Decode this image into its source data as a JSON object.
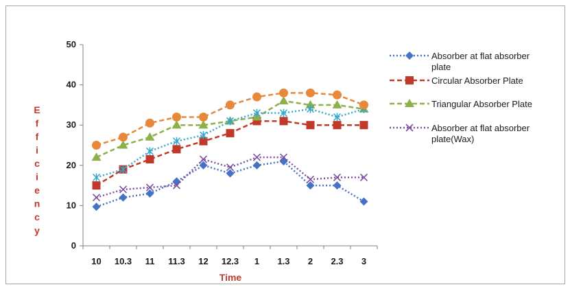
{
  "chart_data": {
    "type": "line",
    "title": "",
    "xlabel": "Time",
    "ylabel": "Efficiency",
    "ylim": [
      0,
      50
    ],
    "yticks": [
      0,
      10,
      20,
      30,
      40,
      50
    ],
    "categories": [
      "10",
      "10.3",
      "11",
      "11.3",
      "12",
      "12.3",
      "1",
      "1.3",
      "2",
      "2.3",
      "3"
    ],
    "grid": false,
    "legend_position": "right",
    "series": [
      {
        "name": "Absorber at flat absorber plate",
        "legend_lines": [
          "Absorber at flat absorber",
          "plate"
        ],
        "values": [
          9.7,
          12,
          13,
          16,
          20,
          18,
          20,
          21,
          15,
          15,
          11
        ],
        "color": "#4472c4",
        "marker": "diamond",
        "dash": "dotted"
      },
      {
        "name": "Circular Absorber Plate",
        "legend_lines": [
          "Circular Absorber Plate"
        ],
        "values": [
          15,
          19,
          21.5,
          24,
          26,
          28,
          31,
          31,
          30,
          30,
          30
        ],
        "color": "#c0392b",
        "marker": "square",
        "dash": "dashed"
      },
      {
        "name": "Triangular Absorber Plate",
        "legend_lines": [
          "Triangular Absorber Plate"
        ],
        "values": [
          22,
          25,
          27,
          30,
          30,
          31,
          32,
          36,
          35,
          35,
          34
        ],
        "color": "#8cb04a",
        "marker": "triangle",
        "dash": "dashed"
      },
      {
        "name": "Absorber at flat absorber plate(Wax)",
        "legend_lines": [
          "Absorber at flat absorber",
          "plate(Wax)"
        ],
        "values": [
          12,
          14,
          14.5,
          15,
          21.5,
          19.5,
          22,
          22,
          16.5,
          17,
          17
        ],
        "color": "#7b4fa0",
        "marker": "x",
        "dash": "dotted"
      },
      {
        "name": "",
        "legend_lines": [],
        "values": [
          17,
          19,
          23.5,
          26,
          27.5,
          31,
          33,
          33,
          34,
          32,
          34
        ],
        "color": "#33a6cc",
        "marker": "star",
        "dash": "dotted"
      },
      {
        "name": "",
        "legend_lines": [],
        "values": [
          25,
          27,
          30.5,
          32,
          32,
          35,
          37,
          38,
          38,
          37.5,
          35
        ],
        "color": "#e8883a",
        "marker": "circle",
        "dash": "dashed"
      }
    ]
  }
}
